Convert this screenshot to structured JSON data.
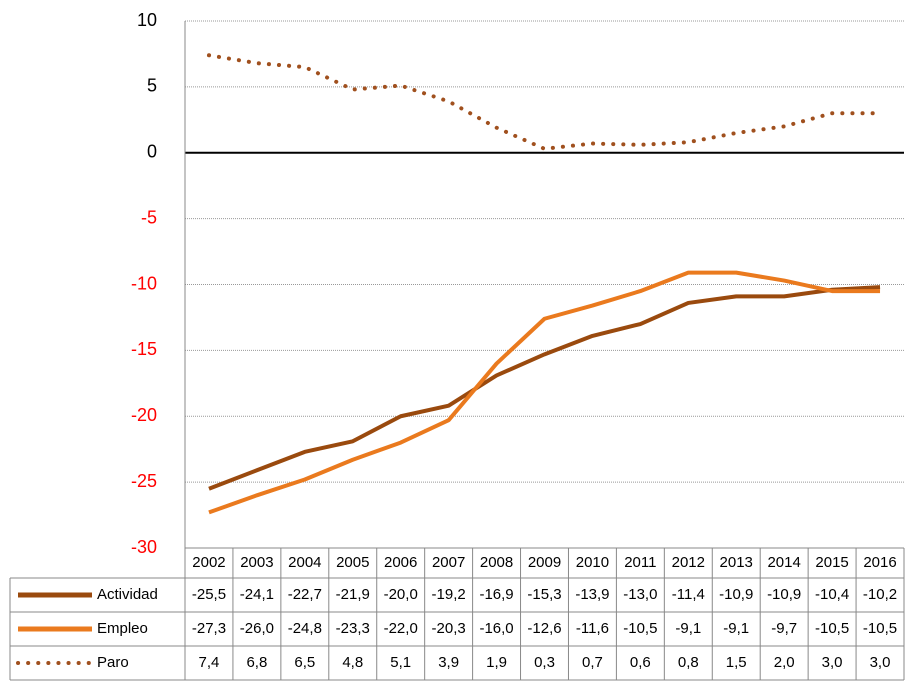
{
  "chart_data": {
    "type": "line",
    "categories": [
      "2002",
      "2003",
      "2004",
      "2005",
      "2006",
      "2007",
      "2008",
      "2009",
      "2010",
      "2011",
      "2012",
      "2013",
      "2014",
      "2015",
      "2016"
    ],
    "ylim": [
      -30,
      10
    ],
    "yticks": [
      10,
      5,
      0,
      -5,
      -10,
      -15,
      -20,
      -25,
      -30
    ],
    "negative_tick_color": "#ff0000",
    "grid": true,
    "series": [
      {
        "name": "Actividad",
        "color": "#9a4a0e",
        "dash": "solid",
        "values": [
          -25.5,
          -24.1,
          -22.7,
          -21.9,
          -20.0,
          -19.2,
          -16.9,
          -15.3,
          -13.9,
          -13.0,
          -11.4,
          -10.9,
          -10.9,
          -10.4,
          -10.2
        ],
        "value_labels": [
          "-25,5",
          "-24,1",
          "-22,7",
          "-21,9",
          "-20,0",
          "-19,2",
          "-16,9",
          "-15,3",
          "-13,9",
          "-13,0",
          "-11,4",
          "-10,9",
          "-10,9",
          "-10,4",
          "-10,2"
        ]
      },
      {
        "name": "Empleo",
        "color": "#ea7a1e",
        "dash": "solid",
        "values": [
          -27.3,
          -26.0,
          -24.8,
          -23.3,
          -22.0,
          -20.3,
          -16.0,
          -12.6,
          -11.6,
          -10.5,
          -9.1,
          -9.1,
          -9.7,
          -10.5,
          -10.5
        ],
        "value_labels": [
          "-27,3",
          "-26,0",
          "-24,8",
          "-23,3",
          "-22,0",
          "-20,3",
          "-16,0",
          "-12,6",
          "-11,6",
          "-10,5",
          "-9,1",
          "-9,1",
          "-9,7",
          "-10,5",
          "-10,5"
        ]
      },
      {
        "name": "Paro",
        "color": "#a0501e",
        "dash": "dotted",
        "values": [
          7.4,
          6.8,
          6.5,
          4.8,
          5.1,
          3.9,
          1.9,
          0.3,
          0.7,
          0.6,
          0.8,
          1.5,
          2.0,
          3.0,
          3.0
        ],
        "value_labels": [
          "7,4",
          "6,8",
          "6,5",
          "4,8",
          "5,1",
          "3,9",
          "1,9",
          "0,3",
          "0,7",
          "0,6",
          "0,8",
          "1,5",
          "2,0",
          "3,0",
          "3,0"
        ]
      }
    ]
  }
}
